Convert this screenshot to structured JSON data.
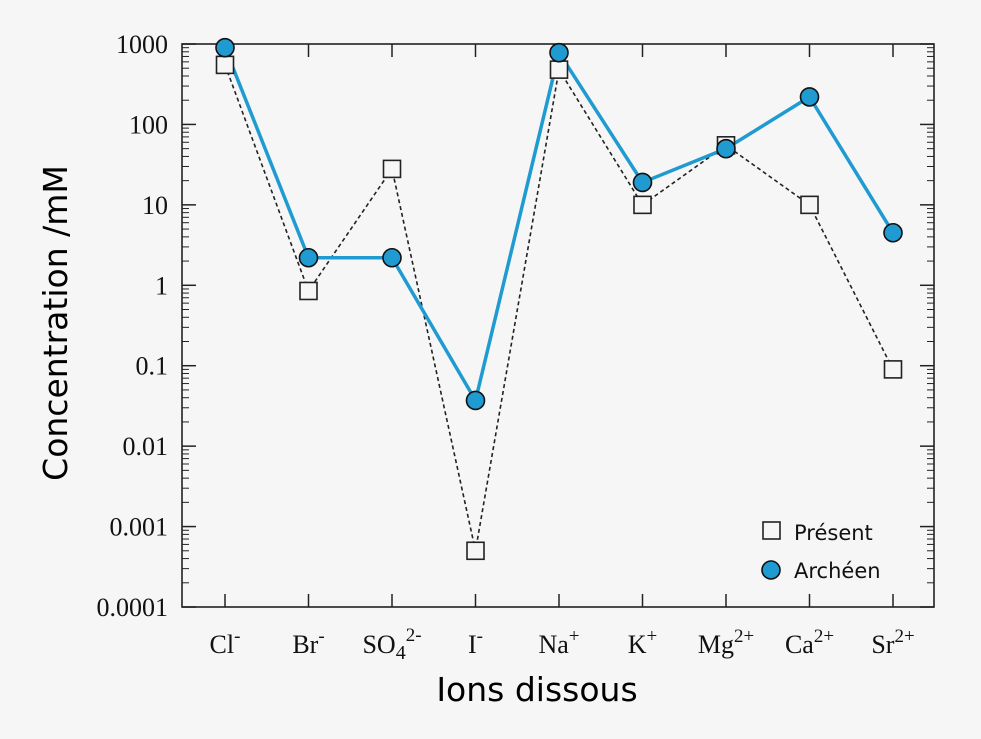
{
  "chart_data": {
    "type": "line",
    "xlabel": "Ions dissous",
    "ylabel": "Concentration /mM",
    "yscale": "log",
    "ylim": [
      0.0001,
      1000
    ],
    "grid": false,
    "legend_position": "bottom-right",
    "categories": [
      {
        "base": "Cl",
        "sup": "-"
      },
      {
        "base": "Br",
        "sup": "-"
      },
      {
        "base": "SO",
        "sub": "4",
        "sup": "2-"
      },
      {
        "base": "I",
        "sup": "-"
      },
      {
        "base": "Na",
        "sup": "+"
      },
      {
        "base": "K",
        "sup": "+"
      },
      {
        "base": "Mg",
        "sup": "2+"
      },
      {
        "base": "Ca",
        "sup": "2+"
      },
      {
        "base": "Sr",
        "sup": "2+"
      }
    ],
    "yticks": [
      {
        "value": 0.0001,
        "label": "0.0001"
      },
      {
        "value": 0.001,
        "label": "0.001"
      },
      {
        "value": 0.01,
        "label": "0.01"
      },
      {
        "value": 0.1,
        "label": "0.1"
      },
      {
        "value": 1,
        "label": "1"
      },
      {
        "value": 10,
        "label": "10"
      },
      {
        "value": 100,
        "label": "100"
      },
      {
        "value": 1000,
        "label": "1000"
      }
    ],
    "series": [
      {
        "name": "Présent",
        "marker": "open-square",
        "line": "dotted",
        "color": "#222222",
        "values": [
          550,
          0.85,
          28,
          0.0005,
          480,
          10,
          55,
          10,
          0.09
        ]
      },
      {
        "name": "Archéen",
        "marker": "filled-circle",
        "line": "solid",
        "color": "#1f9bd1",
        "values": [
          900,
          2.2,
          2.2,
          0.037,
          780,
          19,
          50,
          220,
          4.5
        ]
      }
    ]
  }
}
